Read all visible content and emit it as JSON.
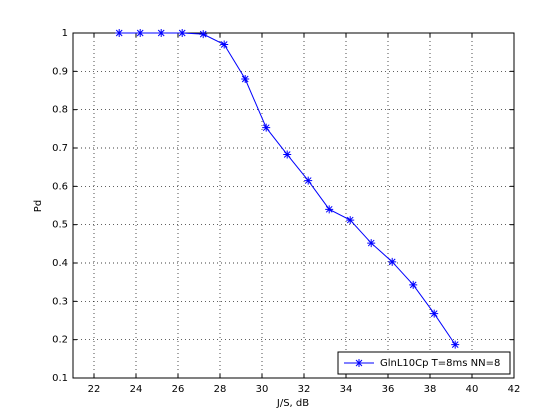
{
  "chart_data": {
    "type": "line",
    "x_label": "J/S, dB",
    "y_label": "Pd",
    "x": [
      23.2,
      24.2,
      25.2,
      26.2,
      27.2,
      28.2,
      29.2,
      30.2,
      31.2,
      32.2,
      33.2,
      34.2,
      35.2,
      36.2,
      37.2,
      38.2,
      39.2
    ],
    "series": [
      {
        "name": "GlnL10Cp T=8ms NN=8",
        "color": "#0000ff",
        "values": [
          1,
          1,
          1,
          1,
          0.997,
          0.97,
          0.88,
          0.753,
          0.683,
          0.615,
          0.54,
          0.512,
          0.452,
          0.403,
          0.343,
          0.268,
          0.187
        ]
      }
    ],
    "xlim": [
      21,
      42
    ],
    "xticks": [
      22,
      24,
      26,
      28,
      30,
      32,
      34,
      36,
      38,
      40,
      42
    ],
    "ylim": [
      0.1,
      1
    ],
    "yticks": [
      0.1,
      0.2,
      0.3,
      0.4,
      0.5,
      0.6,
      0.7,
      0.8,
      0.9,
      1
    ],
    "grid": true,
    "legend_position": "lower right"
  }
}
